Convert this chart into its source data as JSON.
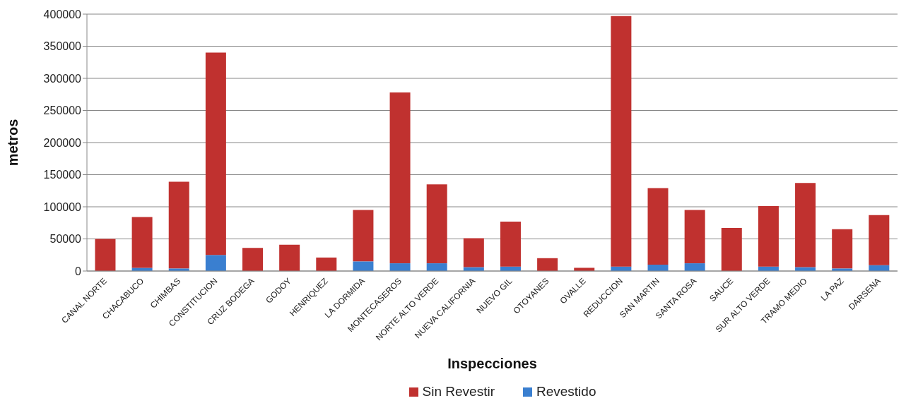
{
  "chart_data": {
    "type": "bar",
    "stacked": true,
    "xlabel": "Inspecciones",
    "ylabel": "metros",
    "categories": [
      "CANAL NORTE",
      "CHACABUCO",
      "CHIMBAS",
      "CONSTITUCION",
      "CRUZ BODEGA",
      "GODOY",
      "HENRIQUEZ",
      "LA DORMIDA",
      "MONTECASEROS",
      "NORTE ALTO VERDE",
      "NUEVA CALIFORNIA",
      "NUEVO GIL",
      "OTOYANES",
      "OVALLE",
      "REDUCCION",
      "SAN MARTIN",
      "SANTA ROSA",
      "SAUCE",
      "SUR ALTO VERDE",
      "TRAMO MEDIO",
      "LA PAZ",
      "DARSENA"
    ],
    "series": [
      {
        "name": "Revestido",
        "color": "#3a7fd0",
        "values": [
          null,
          5000,
          4000,
          25000,
          null,
          null,
          null,
          15000,
          12000,
          12000,
          6000,
          7000,
          null,
          null,
          7000,
          10000,
          12000,
          null,
          7000,
          6000,
          4000,
          9000
        ]
      },
      {
        "name": "Sin Revestir",
        "color": "#c0312f",
        "values": [
          50000,
          79000,
          135000,
          315000,
          36000,
          41000,
          21000,
          80000,
          266000,
          123000,
          45000,
          70000,
          20000,
          5000,
          390000,
          119000,
          83000,
          67000,
          94000,
          131000,
          61000,
          78000
        ]
      }
    ],
    "ylim": [
      0,
      400000
    ],
    "yticks": [
      0,
      50000,
      100000,
      150000,
      200000,
      250000,
      300000,
      350000,
      400000
    ],
    "grid": "y",
    "legend": "bottom"
  }
}
